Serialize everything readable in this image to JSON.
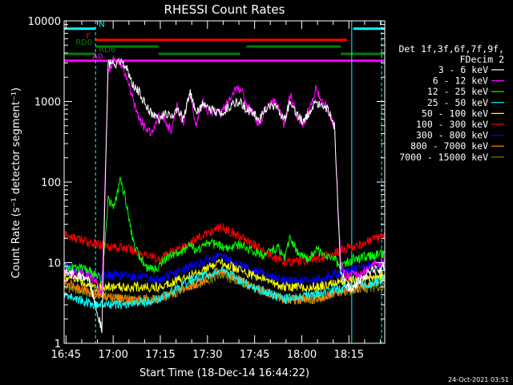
{
  "chart_data": {
    "type": "line",
    "title": "RHESSI Count Rates",
    "xlabel": "Start Time (18-Dec-14 16:44:22)",
    "ylabel": "Count Rate (s⁻¹ detector segment⁻¹)",
    "yscale": "log",
    "ylim": [
      1,
      10000
    ],
    "xlim_minutes": [
      0,
      102
    ],
    "x_ticks": [
      "16:45",
      "17:00",
      "17:15",
      "17:30",
      "17:45",
      "18:00",
      "18:15"
    ],
    "y_ticks": [
      "1",
      "10",
      "100",
      "1000",
      "10000"
    ],
    "legend_header": [
      "Det 1f,3f,6f,7f,9f,",
      "FDecim 2"
    ],
    "legend_position": "right",
    "series": [
      {
        "name": "3 - 6 keV",
        "color": "#ffffff",
        "x": [
          0,
          8,
          10,
          12,
          14,
          16,
          18,
          20,
          22,
          24,
          26,
          28,
          30,
          32,
          34,
          36,
          38,
          40,
          42,
          44,
          46,
          48,
          50,
          52,
          54,
          56,
          58,
          60,
          62,
          64,
          66,
          68,
          70,
          72,
          74,
          76,
          78,
          80,
          82,
          84,
          86,
          88,
          90,
          92,
          94,
          96,
          98,
          100,
          102
        ],
        "values": [
          8,
          6,
          3,
          1.5,
          3000,
          2800,
          3000,
          2600,
          1600,
          1300,
          900,
          700,
          600,
          700,
          650,
          800,
          600,
          1300,
          700,
          900,
          800,
          750,
          700,
          850,
          950,
          1000,
          800,
          700,
          600,
          800,
          900,
          850,
          600,
          1000,
          700,
          550,
          750,
          1000,
          900,
          800,
          500,
          8,
          5,
          5,
          6,
          7,
          8,
          8,
          9
        ]
      },
      {
        "name": "6 - 12 keV",
        "color": "#ff00ff",
        "x": [
          0,
          8,
          10,
          12,
          14,
          16,
          18,
          20,
          22,
          24,
          26,
          28,
          30,
          32,
          34,
          36,
          38,
          40,
          42,
          44,
          46,
          48,
          50,
          52,
          54,
          56,
          58,
          60,
          62,
          64,
          66,
          68,
          70,
          72,
          74,
          76,
          78,
          80,
          82,
          84,
          86,
          88,
          90,
          92,
          94,
          96,
          98,
          100,
          102
        ],
        "values": [
          8,
          7,
          6,
          4,
          2200,
          3500,
          3000,
          2000,
          1000,
          600,
          450,
          420,
          700,
          600,
          420,
          900,
          500,
          1300,
          500,
          1000,
          700,
          800,
          700,
          1000,
          1300,
          1500,
          900,
          700,
          500,
          800,
          1000,
          900,
          500,
          1200,
          650,
          500,
          800,
          1400,
          1000,
          800,
          500,
          9,
          7,
          7,
          7,
          8,
          9,
          10,
          10
        ]
      },
      {
        "name": "12 - 25 keV",
        "color": "#00ff00",
        "x": [
          0,
          8,
          10,
          12,
          14,
          16,
          18,
          20,
          22,
          24,
          26,
          28,
          30,
          32,
          34,
          36,
          38,
          40,
          42,
          44,
          46,
          48,
          50,
          52,
          54,
          56,
          58,
          60,
          62,
          64,
          66,
          68,
          70,
          72,
          74,
          76,
          78,
          80,
          82,
          84,
          86,
          88,
          90,
          92,
          94,
          96,
          98,
          100,
          102
        ],
        "values": [
          9,
          8,
          7,
          6,
          60,
          50,
          110,
          50,
          18,
          12,
          9,
          8,
          9,
          11,
          12,
          13,
          14,
          18,
          14,
          16,
          18,
          17,
          16,
          15,
          16,
          17,
          15,
          14,
          13,
          12,
          14,
          15,
          12,
          20,
          14,
          12,
          11,
          15,
          13,
          12,
          11,
          9,
          10,
          11,
          11,
          12,
          12,
          13,
          13
        ]
      },
      {
        "name": "25 - 50 keV",
        "color": "#00ffff",
        "x": [
          0,
          10,
          20,
          30,
          40,
          50,
          60,
          70,
          80,
          90,
          102
        ],
        "values": [
          4,
          3,
          3,
          3.5,
          6,
          8,
          5,
          3.5,
          4,
          5,
          6
        ]
      },
      {
        "name": "50 - 100 keV",
        "color": "#ffff00",
        "x": [
          0,
          10,
          20,
          30,
          40,
          50,
          60,
          70,
          80,
          90,
          102
        ],
        "values": [
          7,
          5,
          5,
          5,
          7,
          10,
          7,
          5,
          5,
          6,
          7
        ]
      },
      {
        "name": "100 - 300 keV",
        "color": "#ff0000",
        "x": [
          0,
          10,
          20,
          30,
          40,
          50,
          60,
          70,
          80,
          90,
          102
        ],
        "values": [
          22,
          17,
          15,
          11,
          18,
          28,
          17,
          10,
          11,
          15,
          21
        ]
      },
      {
        "name": "300 - 800 keV",
        "color": "#0000ff",
        "x": [
          0,
          10,
          20,
          30,
          40,
          50,
          60,
          70,
          80,
          90,
          102
        ],
        "values": [
          9,
          7,
          7,
          6,
          9,
          12,
          8,
          6,
          6,
          8,
          10
        ]
      },
      {
        "name": "800 - 7000 keV",
        "color": "#ff8000",
        "x": [
          0,
          10,
          20,
          30,
          40,
          50,
          60,
          70,
          80,
          90,
          102
        ],
        "values": [
          6,
          4,
          3.5,
          3.5,
          5,
          8,
          5,
          3.5,
          3.5,
          4.5,
          6
        ]
      },
      {
        "name": "7000 - 15000 keV",
        "color": "#808000",
        "x": [
          0,
          10,
          20,
          30,
          40,
          50,
          60,
          70,
          80,
          90,
          102
        ],
        "values": [
          5,
          4,
          3.5,
          3.5,
          5,
          7,
          5,
          3.5,
          3.5,
          4.5,
          5
        ]
      }
    ],
    "flag_bars": [
      {
        "label": "N",
        "color": "#00ffff",
        "y": 8000,
        "segments": [
          [
            0,
            10
          ],
          [
            92,
            102
          ]
        ]
      },
      {
        "label": "F",
        "color": "#ff0000",
        "y": 5800,
        "segments": [
          [
            10,
            90
          ]
        ]
      },
      {
        "label": "RD0",
        "color": "#008000",
        "y": 4800,
        "segments": [
          [
            10,
            30
          ],
          [
            58,
            88
          ]
        ]
      },
      {
        "label": "RD6",
        "color": "#008000",
        "y": 3900,
        "segments": [
          [
            0,
            10
          ],
          [
            30,
            56
          ],
          [
            88,
            102
          ]
        ]
      },
      {
        "label": "A0",
        "color": "#ff00ff",
        "y": 3200,
        "segments": [
          [
            0,
            10
          ],
          [
            10,
            102
          ]
        ]
      }
    ],
    "vertical_lines": [
      {
        "x": 0,
        "color": "#00ffff",
        "style": "solid"
      },
      {
        "x": 10,
        "color": "#00ffff",
        "style": "dashed"
      },
      {
        "x": 91.5,
        "color": "#00ffff",
        "style": "solid"
      },
      {
        "x": 101,
        "color": "#00ffff",
        "style": "dashed"
      }
    ],
    "grid": false
  },
  "footer": {
    "timestamp": "24-Oct-2021 03:51"
  }
}
